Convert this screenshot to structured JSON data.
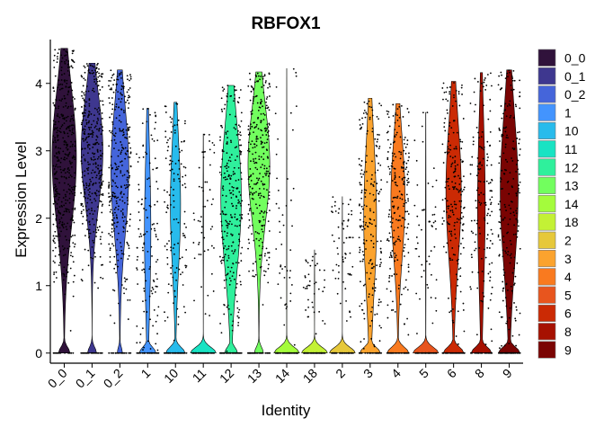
{
  "chart_data": {
    "type": "violin",
    "title": "RBFOX1",
    "xlabel": "Identity",
    "ylabel": "Expression Level",
    "ylim": [
      -0.15,
      4.65
    ],
    "yticks": [
      0,
      1,
      2,
      3,
      4
    ],
    "grid": false,
    "legend_position": "right",
    "show_points": true,
    "categories": [
      "0_0",
      "0_1",
      "0_2",
      "1",
      "10",
      "11",
      "12",
      "13",
      "14",
      "18",
      "2",
      "3",
      "4",
      "5",
      "6",
      "8",
      "9"
    ],
    "colors": [
      "#30123B",
      "#3E378F",
      "#4565DA",
      "#4394FE",
      "#28BBEC",
      "#19E3C3",
      "#2FF09C",
      "#72FE5E",
      "#A4FC3C",
      "#C3F135",
      "#E6C83A",
      "#FBA32E",
      "#F97A1F",
      "#E8551E",
      "#CB2A04",
      "#A61101",
      "#7A0403"
    ],
    "series": [
      {
        "name": "0_0",
        "max": 4.52,
        "median": 2.9,
        "zero_fraction": 0.08,
        "peak_width": 0.95,
        "zero_width": 0.45
      },
      {
        "name": "0_1",
        "max": 4.3,
        "median": 3.0,
        "zero_fraction": 0.12,
        "peak_width": 0.85,
        "zero_width": 0.35
      },
      {
        "name": "0_2",
        "max": 4.2,
        "median": 2.7,
        "zero_fraction": 0.18,
        "peak_width": 0.7,
        "zero_width": 0.2
      },
      {
        "name": "1",
        "max": 3.63,
        "median": 1.8,
        "zero_fraction": 0.45,
        "peak_width": 0.25,
        "zero_width": 0.65
      },
      {
        "name": "10",
        "max": 3.72,
        "median": 2.2,
        "zero_fraction": 0.55,
        "peak_width": 0.4,
        "zero_width": 0.75
      },
      {
        "name": "11",
        "max": 3.25,
        "median": 2.0,
        "zero_fraction": 0.92,
        "peak_width": 0.02,
        "zero_width": 1.0
      },
      {
        "name": "12",
        "max": 3.97,
        "median": 2.3,
        "zero_fraction": 0.3,
        "peak_width": 0.8,
        "zero_width": 0.5
      },
      {
        "name": "13",
        "max": 4.17,
        "median": 2.8,
        "zero_fraction": 0.28,
        "peak_width": 0.85,
        "zero_width": 0.35
      },
      {
        "name": "14",
        "max": 4.22,
        "median": 2.0,
        "zero_fraction": 0.95,
        "peak_width": 0.01,
        "zero_width": 1.0
      },
      {
        "name": "18",
        "max": 1.53,
        "median": 1.0,
        "zero_fraction": 0.97,
        "peak_width": 0.01,
        "zero_width": 1.0
      },
      {
        "name": "2",
        "max": 2.32,
        "median": 1.5,
        "zero_fraction": 0.93,
        "peak_width": 0.01,
        "zero_width": 1.0
      },
      {
        "name": "3",
        "max": 3.78,
        "median": 2.0,
        "zero_fraction": 0.35,
        "peak_width": 0.5,
        "zero_width": 0.8
      },
      {
        "name": "4",
        "max": 3.7,
        "median": 2.3,
        "zero_fraction": 0.3,
        "peak_width": 0.55,
        "zero_width": 0.85
      },
      {
        "name": "5",
        "max": 3.57,
        "median": 1.8,
        "zero_fraction": 0.9,
        "peak_width": 0.02,
        "zero_width": 1.0
      },
      {
        "name": "6",
        "max": 4.03,
        "median": 2.4,
        "zero_fraction": 0.35,
        "peak_width": 0.6,
        "zero_width": 0.8
      },
      {
        "name": "8",
        "max": 4.16,
        "median": 2.2,
        "zero_fraction": 0.4,
        "peak_width": 0.3,
        "zero_width": 0.8
      },
      {
        "name": "9",
        "max": 4.2,
        "median": 2.4,
        "zero_fraction": 0.4,
        "peak_width": 0.7,
        "zero_width": 0.85
      }
    ]
  }
}
